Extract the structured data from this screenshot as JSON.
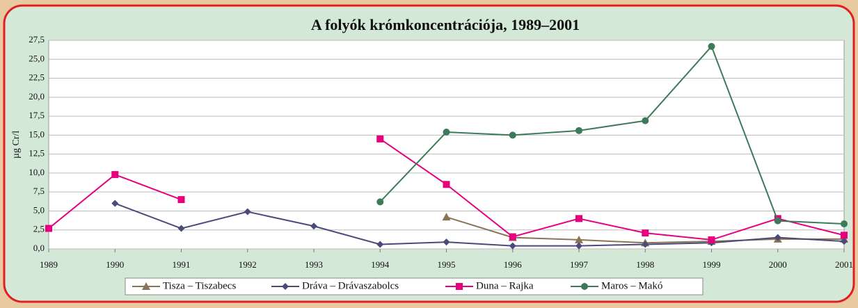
{
  "chart_data": {
    "type": "line",
    "title": "A folyók krómkoncentrációja, 1989–2001",
    "y_label": "µg Cr/l",
    "categories": [
      "1989",
      "1990",
      "1991",
      "1992",
      "1993",
      "1994",
      "1995",
      "1996",
      "1997",
      "1998",
      "1999",
      "2000",
      "2001"
    ],
    "series": [
      {
        "name": "Tisza – Tiszabecs",
        "color": "#8c7355",
        "marker": "triangle",
        "values": [
          null,
          null,
          null,
          null,
          null,
          null,
          4.2,
          1.5,
          1.2,
          0.8,
          1.0,
          1.3,
          1.3
        ]
      },
      {
        "name": "Dráva – Drávaszabolcs",
        "color": "#4b4b7a",
        "marker": "diamond",
        "values": [
          null,
          6.0,
          2.7,
          4.9,
          3.0,
          0.6,
          0.9,
          0.4,
          0.4,
          0.6,
          0.8,
          1.5,
          1.0
        ]
      },
      {
        "name": "Duna – Rajka",
        "color": "#e6007e",
        "marker": "square",
        "values": [
          2.7,
          9.8,
          6.5,
          null,
          null,
          14.5,
          8.5,
          1.6,
          4.0,
          2.1,
          1.2,
          4.0,
          1.8
        ]
      },
      {
        "name": "Maros – Makó",
        "color": "#3c7a5a",
        "marker": "circle",
        "values": [
          null,
          null,
          null,
          null,
          null,
          6.2,
          15.4,
          15.0,
          15.6,
          16.9,
          26.7,
          3.7,
          3.3
        ]
      }
    ],
    "ylim": [
      0,
      27.5
    ],
    "yticks": [
      {
        "value": 0,
        "label": "0,0"
      },
      {
        "value": 2.5,
        "label": "2,5"
      },
      {
        "value": 5,
        "label": "5,0"
      },
      {
        "value": 7.5,
        "label": "7,5"
      },
      {
        "value": 10,
        "label": "10,0"
      },
      {
        "value": 12.5,
        "label": "12,5"
      },
      {
        "value": 15,
        "label": "15,0"
      },
      {
        "value": 17.5,
        "label": "17,5"
      },
      {
        "value": 20,
        "label": "20,0"
      },
      {
        "value": 22.5,
        "label": "22,5"
      },
      {
        "value": 25,
        "label": "25,0"
      },
      {
        "value": 27.5,
        "label": "27,5"
      }
    ],
    "grid": true,
    "legend": "bottom"
  }
}
